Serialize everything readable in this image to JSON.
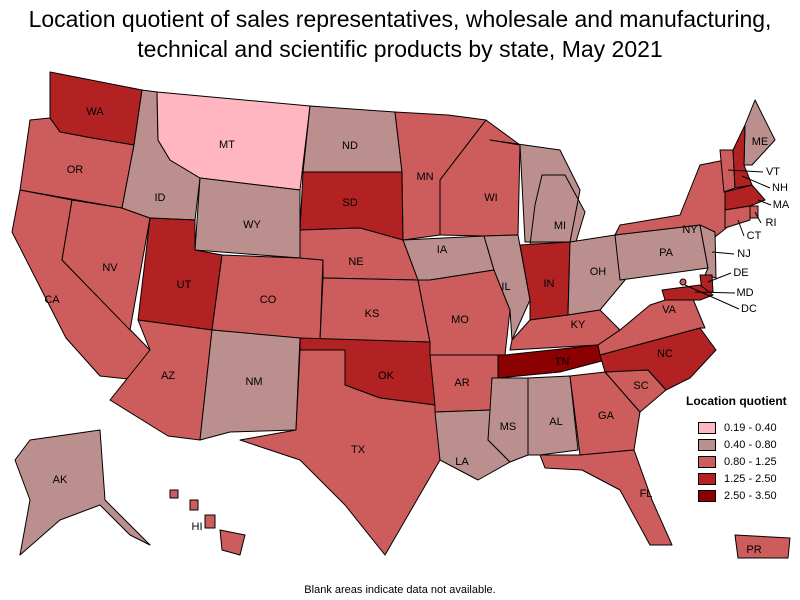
{
  "title": "Location quotient of sales representatives, wholesale and manufacturing, technical and scientific products by state, May 2021",
  "footnote": "Blank areas indicate data not available.",
  "legend": {
    "title": "Location quotient",
    "bins": [
      {
        "label": "0.19 - 0.40",
        "color": "#ffb6c1"
      },
      {
        "label": "0.40 - 0.80",
        "color": "#bc8f8f"
      },
      {
        "label": "0.80 - 1.25",
        "color": "#cd5c5c"
      },
      {
        "label": "1.25 - 2.50",
        "color": "#b22222"
      },
      {
        "label": "2.50 - 3.50",
        "color": "#8b0000"
      }
    ]
  },
  "chart_data": {
    "type": "choropleth",
    "title": "Location quotient of sales representatives, wholesale and manufacturing, technical and scientific products by state, May 2021",
    "states": [
      {
        "code": "WA",
        "bin": "1.25 - 2.50"
      },
      {
        "code": "OR",
        "bin": "0.80 - 1.25"
      },
      {
        "code": "CA",
        "bin": "0.80 - 1.25"
      },
      {
        "code": "NV",
        "bin": "0.80 - 1.25"
      },
      {
        "code": "ID",
        "bin": "0.40 - 0.80"
      },
      {
        "code": "MT",
        "bin": "0.19 - 0.40"
      },
      {
        "code": "WY",
        "bin": "0.40 - 0.80"
      },
      {
        "code": "UT",
        "bin": "1.25 - 2.50"
      },
      {
        "code": "AZ",
        "bin": "0.80 - 1.25"
      },
      {
        "code": "CO",
        "bin": "0.80 - 1.25"
      },
      {
        "code": "NM",
        "bin": "0.40 - 0.80"
      },
      {
        "code": "ND",
        "bin": "0.40 - 0.80"
      },
      {
        "code": "SD",
        "bin": "1.25 - 2.50"
      },
      {
        "code": "NE",
        "bin": "0.80 - 1.25"
      },
      {
        "code": "KS",
        "bin": "0.80 - 1.25"
      },
      {
        "code": "OK",
        "bin": "1.25 - 2.50"
      },
      {
        "code": "TX",
        "bin": "0.80 - 1.25"
      },
      {
        "code": "MN",
        "bin": "0.80 - 1.25"
      },
      {
        "code": "IA",
        "bin": "0.40 - 0.80"
      },
      {
        "code": "MO",
        "bin": "0.80 - 1.25"
      },
      {
        "code": "AR",
        "bin": "0.80 - 1.25"
      },
      {
        "code": "LA",
        "bin": "0.40 - 0.80"
      },
      {
        "code": "WI",
        "bin": "0.80 - 1.25"
      },
      {
        "code": "IL",
        "bin": "0.40 - 0.80"
      },
      {
        "code": "MI",
        "bin": "0.40 - 0.80"
      },
      {
        "code": "IN",
        "bin": "1.25 - 2.50"
      },
      {
        "code": "OH",
        "bin": "0.40 - 0.80"
      },
      {
        "code": "KY",
        "bin": "0.80 - 1.25"
      },
      {
        "code": "TN",
        "bin": "2.50 - 3.50"
      },
      {
        "code": "MS",
        "bin": "0.40 - 0.80"
      },
      {
        "code": "AL",
        "bin": "0.40 - 0.80"
      },
      {
        "code": "GA",
        "bin": "0.80 - 1.25"
      },
      {
        "code": "FL",
        "bin": "0.80 - 1.25"
      },
      {
        "code": "SC",
        "bin": "0.80 - 1.25"
      },
      {
        "code": "NC",
        "bin": "1.25 - 2.50"
      },
      {
        "code": "VA",
        "bin": "0.80 - 1.25"
      },
      {
        "code": "PA",
        "bin": "0.40 - 0.80"
      },
      {
        "code": "NY",
        "bin": "0.80 - 1.25"
      },
      {
        "code": "ME",
        "bin": "0.40 - 0.80"
      },
      {
        "code": "VT",
        "bin": "0.80 - 1.25"
      },
      {
        "code": "NH",
        "bin": "1.25 - 2.50"
      },
      {
        "code": "MA",
        "bin": "1.25 - 2.50"
      },
      {
        "code": "RI",
        "bin": "0.80 - 1.25"
      },
      {
        "code": "CT",
        "bin": "0.80 - 1.25"
      },
      {
        "code": "NJ",
        "bin": "0.40 - 0.80"
      },
      {
        "code": "DE",
        "bin": "1.25 - 2.50"
      },
      {
        "code": "MD",
        "bin": "1.25 - 2.50"
      },
      {
        "code": "DC",
        "bin": "0.80 - 1.25"
      },
      {
        "code": "AK",
        "bin": "0.40 - 0.80"
      },
      {
        "code": "HI",
        "bin": "0.80 - 1.25"
      },
      {
        "code": "PR",
        "bin": "0.80 - 1.25"
      }
    ]
  }
}
